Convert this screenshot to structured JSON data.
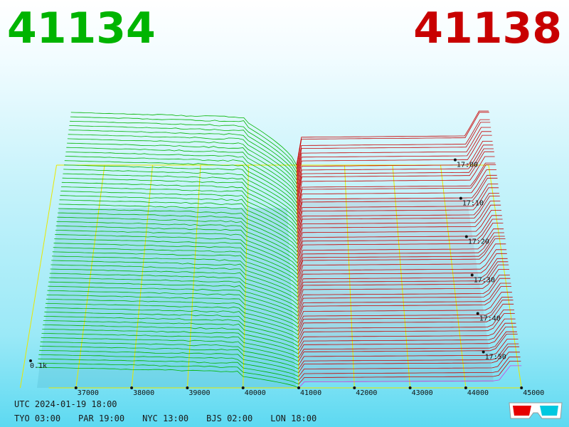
{
  "header": {
    "bid_price": "41134",
    "ask_price": "41138",
    "bid_color": "#00b400",
    "ask_color": "#c80000"
  },
  "footer": {
    "utc_label": "UTC",
    "utc_datetime": "2024-01-19 18:00",
    "timezones": [
      {
        "city": "TYO",
        "time": "03:00"
      },
      {
        "city": "PAR",
        "time": "19:00"
      },
      {
        "city": "NYC",
        "time": "13:00"
      },
      {
        "city": "BJS",
        "time": "02:00"
      },
      {
        "city": "LON",
        "time": "18:00"
      }
    ]
  },
  "glasses_icon": "3d-glasses-icon",
  "chart_data": {
    "type": "area",
    "description_of_axes": "3D order-book depth chart",
    "x_axis": {
      "ticks": [
        37000,
        38000,
        39000,
        40000,
        41000,
        42000,
        43000,
        44000,
        45000
      ],
      "range": [
        36000,
        45000
      ]
    },
    "depth_axis": {
      "tick_label": "0.1k"
    },
    "time_axis": {
      "ticks": [
        "17:00",
        "17:10",
        "17:20",
        "17:30",
        "17:40",
        "17:50"
      ]
    },
    "grid": true,
    "grid_color": "#e8e800",
    "series": [
      {
        "side": "bid",
        "color": "#00b400",
        "snapshots": 60
      },
      {
        "side": "ask",
        "color": "#c80000",
        "snapshots": 60
      }
    ],
    "latest_ask_color": "#d040e0"
  }
}
